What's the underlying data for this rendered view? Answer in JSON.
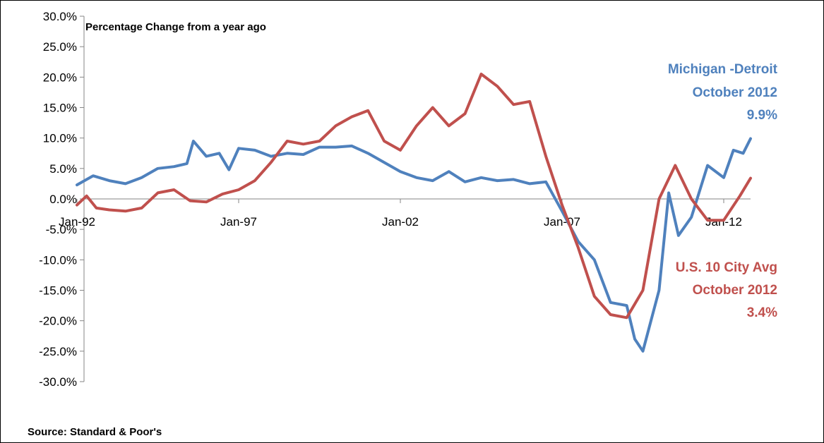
{
  "chart_data": {
    "type": "line",
    "title": "",
    "subtitle": "Percentage Change from a year ago",
    "source": "Source: Standard & Poor's",
    "xlabel": "",
    "ylabel": "",
    "ylim": [
      -30,
      30
    ],
    "xlim": [
      1992,
      2012.83
    ],
    "y_ticks": [
      "30.0%",
      "25.0%",
      "20.0%",
      "15.0%",
      "10.0%",
      "5.0%",
      "0.0%",
      "-5.0%",
      "-10.0%",
      "-15.0%",
      "-20.0%",
      "-25.0%",
      "-30.0%"
    ],
    "y_tick_values": [
      30,
      25,
      20,
      15,
      10,
      5,
      0,
      -5,
      -10,
      -15,
      -20,
      -25,
      -30
    ],
    "x_ticks": [
      "Jan-92",
      "Jan-97",
      "Jan-02",
      "Jan-07",
      "Jan-12"
    ],
    "x_tick_values": [
      1992,
      1997,
      2002,
      2007,
      2012
    ],
    "grid": false,
    "series": [
      {
        "name": "Michigan -Detroit",
        "color": "#4F81BD",
        "x": [
          1992.0,
          1992.5,
          1993.0,
          1993.5,
          1994.0,
          1994.5,
          1995.0,
          1995.4,
          1995.6,
          1996.0,
          1996.4,
          1996.7,
          1997.0,
          1997.5,
          1998.0,
          1998.5,
          1999.0,
          1999.5,
          2000.0,
          2000.5,
          2001.0,
          2001.5,
          2002.0,
          2002.5,
          2003.0,
          2003.5,
          2004.0,
          2004.5,
          2005.0,
          2005.5,
          2006.0,
          2006.5,
          2007.0,
          2007.5,
          2008.0,
          2008.5,
          2009.0,
          2009.25,
          2009.5,
          2010.0,
          2010.3,
          2010.6,
          2011.0,
          2011.5,
          2012.0,
          2012.3,
          2012.6,
          2012.83
        ],
        "values": [
          2.3,
          3.8,
          3.0,
          2.5,
          3.5,
          5.0,
          5.3,
          5.8,
          9.5,
          7.0,
          7.5,
          4.8,
          8.3,
          8.0,
          7.0,
          7.5,
          7.3,
          8.5,
          8.5,
          8.7,
          7.5,
          6.0,
          4.5,
          3.5,
          3.0,
          4.5,
          2.8,
          3.5,
          3.0,
          3.2,
          2.5,
          2.8,
          -2.0,
          -7.0,
          -10.0,
          -17.0,
          -17.5,
          -23.0,
          -25.0,
          -15.0,
          1.0,
          -6.0,
          -3.0,
          5.5,
          3.5,
          8.0,
          7.5,
          9.9
        ]
      },
      {
        "name": "U.S. 10 City Avg",
        "color": "#C0504D",
        "x": [
          1992.0,
          1992.3,
          1992.6,
          1993.0,
          1993.5,
          1994.0,
          1994.5,
          1995.0,
          1995.5,
          1996.0,
          1996.5,
          1997.0,
          1997.5,
          1998.0,
          1998.5,
          1999.0,
          1999.5,
          2000.0,
          2000.5,
          2001.0,
          2001.5,
          2002.0,
          2002.5,
          2003.0,
          2003.5,
          2004.0,
          2004.5,
          2005.0,
          2005.5,
          2006.0,
          2006.5,
          2007.0,
          2007.5,
          2008.0,
          2008.5,
          2009.0,
          2009.5,
          2010.0,
          2010.5,
          2011.0,
          2011.5,
          2012.0,
          2012.5,
          2012.83
        ],
        "values": [
          -1.0,
          0.5,
          -1.5,
          -1.8,
          -2.0,
          -1.5,
          1.0,
          1.5,
          -0.3,
          -0.5,
          0.8,
          1.5,
          3.0,
          6.0,
          9.5,
          9.0,
          9.5,
          12.0,
          13.5,
          14.5,
          9.5,
          8.0,
          12.0,
          15.0,
          12.0,
          14.0,
          20.5,
          18.5,
          15.5,
          16.0,
          7.0,
          -1.0,
          -8.0,
          -16.0,
          -19.0,
          -19.5,
          -15.0,
          0.0,
          5.5,
          0.0,
          -3.5,
          -3.5,
          0.5,
          3.4
        ]
      }
    ],
    "annotations": [
      {
        "series": "Michigan -Detroit",
        "lines": [
          "Michigan -Detroit",
          "October 2012",
          "9.9%"
        ],
        "color": "#4F81BD"
      },
      {
        "series": "U.S. 10 City Avg",
        "lines": [
          "U.S. 10 City Avg",
          "October 2012",
          "3.4%"
        ],
        "color": "#C0504D"
      }
    ]
  }
}
